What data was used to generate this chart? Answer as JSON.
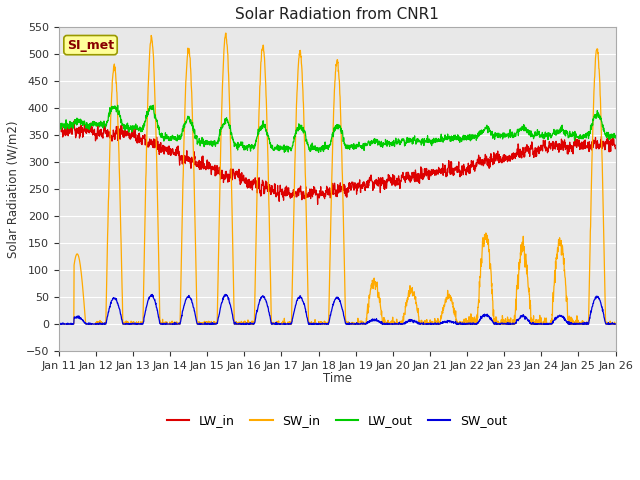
{
  "title": "Solar Radiation from CNR1",
  "ylabel": "Solar Radiation (W/m2)",
  "xlabel": "Time",
  "ylim": [
    -50,
    550
  ],
  "yticks": [
    -50,
    0,
    50,
    100,
    150,
    200,
    250,
    300,
    350,
    400,
    450,
    500,
    550
  ],
  "bg_color": "#e8e8e8",
  "fig_color": "#ffffff",
  "colors": {
    "LW_in": "#dd0000",
    "SW_in": "#ffaa00",
    "LW_out": "#00cc00",
    "SW_out": "#0000dd"
  },
  "label_box": "SI_met",
  "label_box_facecolor": "#ffff99",
  "label_box_edgecolor": "#999900",
  "label_box_textcolor": "#880000",
  "n_days": 15,
  "start_day": 11
}
